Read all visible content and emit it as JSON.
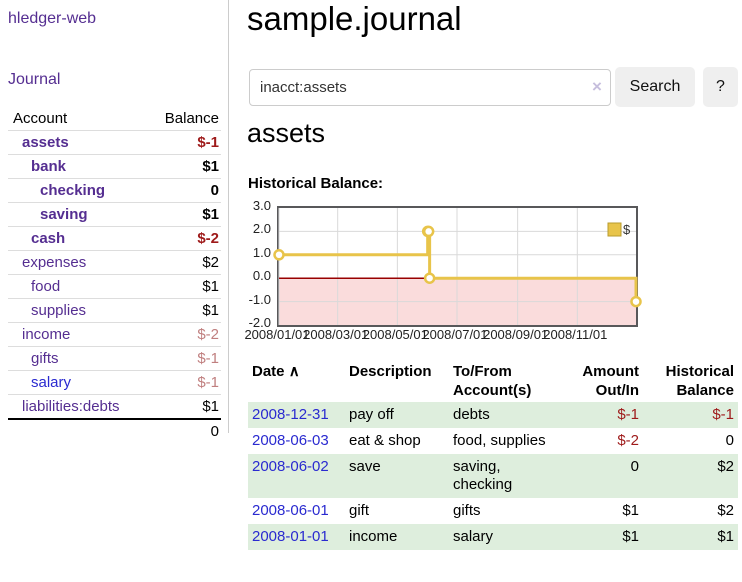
{
  "colors": {
    "link_purple": "#552e91",
    "link_blue": "#2a2ad0",
    "negative_red": "#9e1a1a",
    "negative_muted": "#c07f7f",
    "row_green": "#deeedd",
    "chart_gold": "#e8c44a"
  },
  "sidebar": {
    "brand": "hledger-web",
    "nav": [
      {
        "label": "Journal"
      }
    ],
    "accounts_table": {
      "headers": {
        "account": "Account",
        "balance": "Balance"
      },
      "rows": [
        {
          "name": "assets",
          "depth": 1,
          "bold": true,
          "balance": "$-1",
          "balance_style": "neg-strong"
        },
        {
          "name": "bank",
          "depth": 2,
          "bold": true,
          "balance": "$1",
          "balance_style": "plain"
        },
        {
          "name": "checking",
          "depth": 3,
          "bold": true,
          "balance": "0",
          "balance_style": "plain"
        },
        {
          "name": "saving",
          "depth": 3,
          "bold": true,
          "balance": "$1",
          "balance_style": "plain"
        },
        {
          "name": "cash",
          "depth": 2,
          "bold": true,
          "balance": "$-2",
          "balance_style": "neg-strong"
        },
        {
          "name": "expenses",
          "depth": 1,
          "bold": false,
          "balance": "$2",
          "balance_style": "plain"
        },
        {
          "name": "food",
          "depth": 2,
          "bold": false,
          "balance": "$1",
          "balance_style": "plain"
        },
        {
          "name": "supplies",
          "depth": 2,
          "bold": false,
          "balance": "$1",
          "balance_style": "plain"
        },
        {
          "name": "income",
          "depth": 1,
          "bold": false,
          "balance": "$-2",
          "balance_style": "neg-muted"
        },
        {
          "name": "gifts",
          "depth": 2,
          "bold": false,
          "balance": "$-1",
          "balance_style": "neg-muted"
        },
        {
          "name": "salary",
          "depth": 2,
          "bold": false,
          "balance": "$-1",
          "balance_style": "neg-muted",
          "link_style": "unvisited"
        },
        {
          "name": "liabilities:debts",
          "depth": 1,
          "bold": false,
          "balance": "$1",
          "balance_style": "plain"
        }
      ],
      "total": "0"
    }
  },
  "header": {
    "title": "sample.journal"
  },
  "search": {
    "value": "inacct:assets",
    "clear_icon": "×",
    "button_label": "Search",
    "help_label": "?"
  },
  "report": {
    "heading": "assets",
    "chart_label": "Historical Balance:"
  },
  "chart_data": {
    "type": "line",
    "step": true,
    "title": "Historical Balance",
    "series": [
      {
        "name": "$",
        "points": [
          [
            "2008-01-01",
            1
          ],
          [
            "2008-06-01",
            2
          ],
          [
            "2008-06-02",
            2
          ],
          [
            "2008-06-03",
            0
          ],
          [
            "2008-12-31",
            -1
          ]
        ]
      }
    ],
    "ylim": [
      -2.0,
      3.0
    ],
    "yticks": [
      "3.0",
      "2.0",
      "1.0",
      "0.0",
      "-1.0",
      "-2.0"
    ],
    "xticks": [
      "2008/01/01",
      "2008/03/01",
      "2008/05/01",
      "2008/07/01",
      "2008/09/01",
      "2008/11/01"
    ],
    "x_range": [
      "2008-01-01",
      "2008-12-31"
    ],
    "grid": true,
    "legend_position": "top-right",
    "legend": "$",
    "colors": {
      "line": "#e8c44a",
      "marker_fill": "#ffffff",
      "legend_border": "#b89b2e",
      "negative_fill": "#fadcdc",
      "zero_line": "#980000",
      "grid": "#d9d9d9",
      "border": "#58585a"
    }
  },
  "table": {
    "sort_indicator": "∧",
    "headers": [
      {
        "line1": "Date",
        "line2": "",
        "align": "left",
        "sorted": true
      },
      {
        "line1": "Description",
        "line2": "",
        "align": "left",
        "sorted": false
      },
      {
        "line1": "To/From",
        "line2": "Account(s)",
        "align": "left",
        "sorted": false
      },
      {
        "line1": "Amount",
        "line2": "Out/In",
        "align": "right",
        "sorted": false
      },
      {
        "line1": "Historical",
        "line2": "Balance",
        "align": "right",
        "sorted": false
      }
    ],
    "rows": [
      {
        "date": "2008-12-31",
        "description": "pay off",
        "accounts": "debts",
        "amount": "$-1",
        "amount_neg": true,
        "balance": "$-1",
        "balance_neg": true
      },
      {
        "date": "2008-06-03",
        "description": "eat & shop",
        "accounts": "food, supplies",
        "amount": "$-2",
        "amount_neg": true,
        "balance": "0",
        "balance_neg": false
      },
      {
        "date": "2008-06-02",
        "description": "save",
        "accounts": "saving,\nchecking",
        "amount": "0",
        "amount_neg": false,
        "balance": "$2",
        "balance_neg": false
      },
      {
        "date": "2008-06-01",
        "description": "gift",
        "accounts": "gifts",
        "amount": "$1",
        "amount_neg": false,
        "balance": "$2",
        "balance_neg": false
      },
      {
        "date": "2008-01-01",
        "description": "income",
        "accounts": "salary",
        "amount": "$1",
        "amount_neg": false,
        "balance": "$1",
        "balance_neg": false
      }
    ]
  }
}
